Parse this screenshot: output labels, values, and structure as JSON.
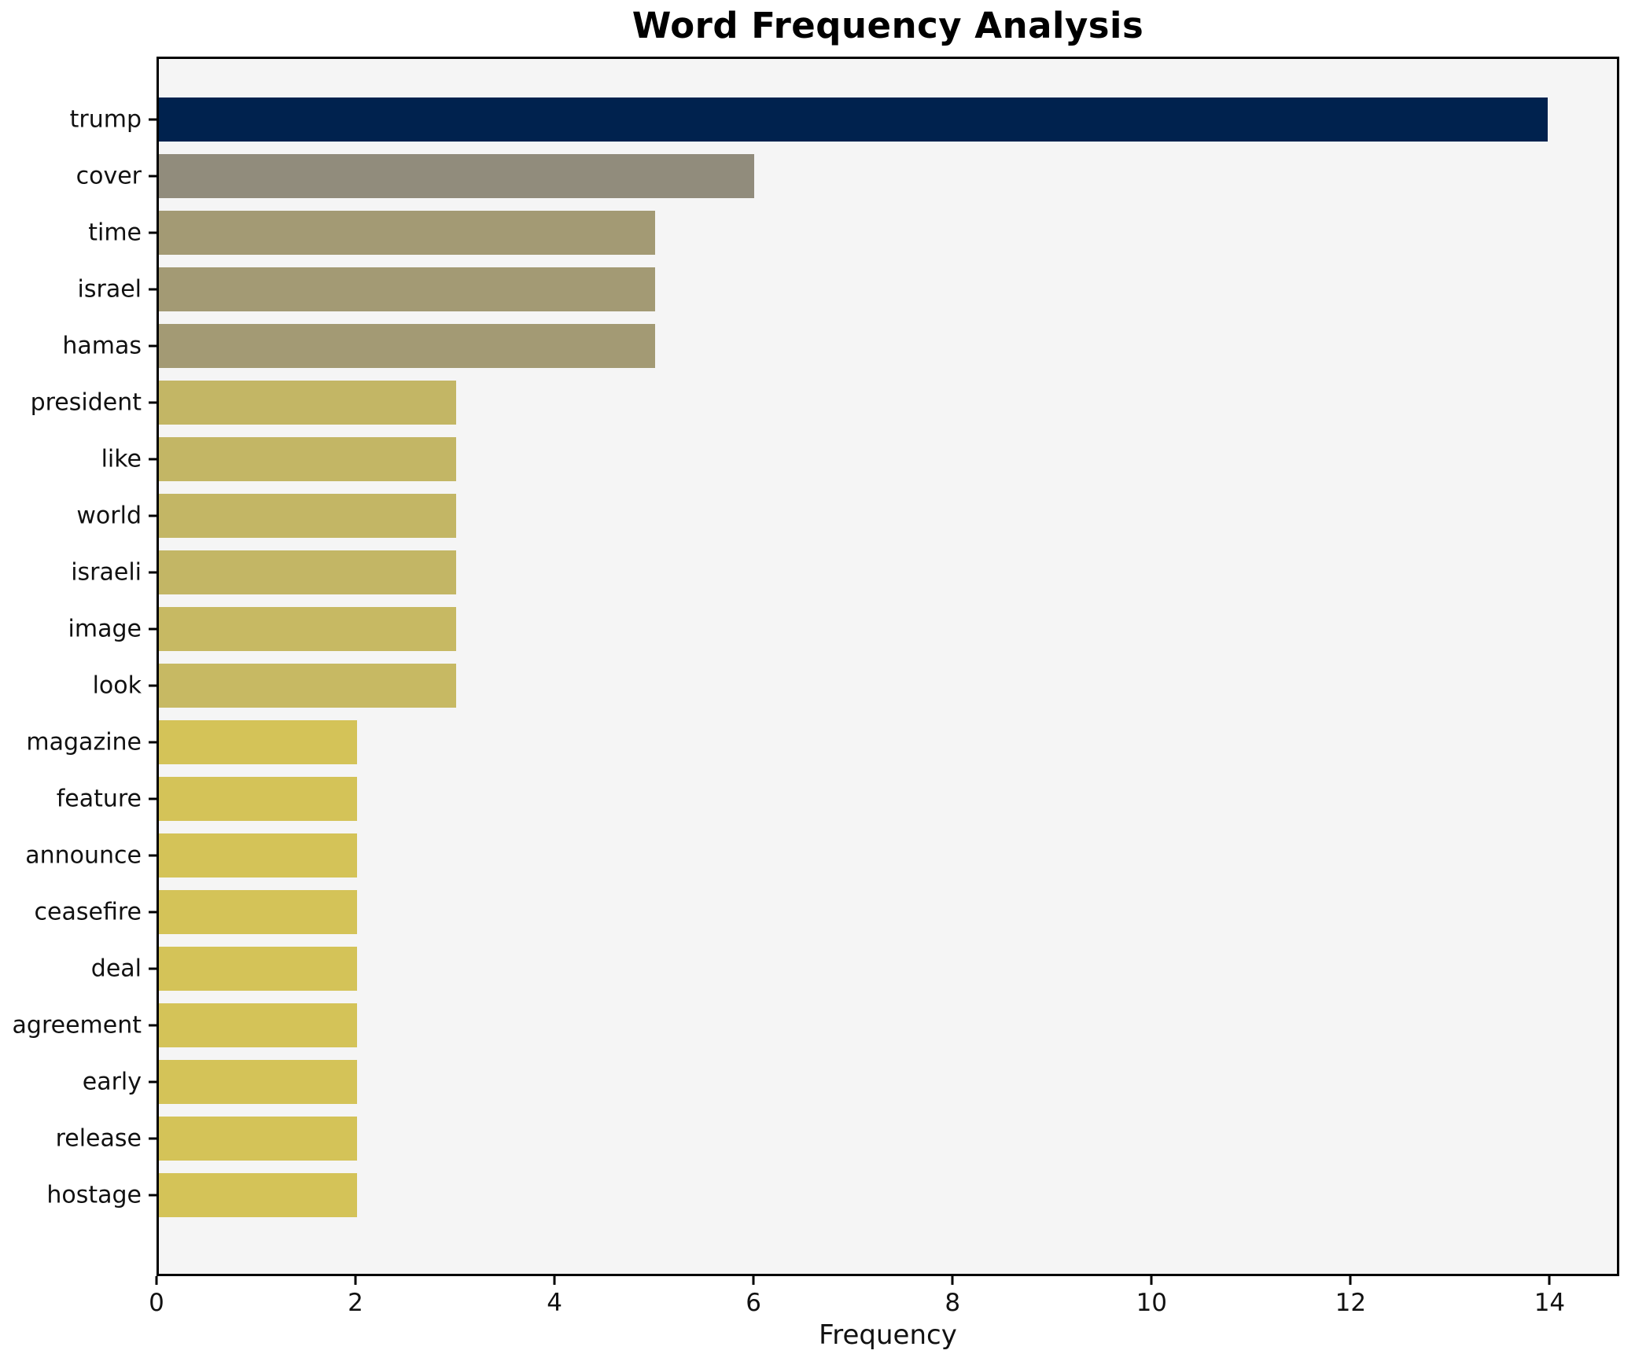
{
  "chart_data": {
    "type": "bar",
    "orientation": "horizontal",
    "title": "Word Frequency Analysis",
    "xlabel": "Frequency",
    "ylabel": "",
    "xlim": [
      0,
      14.7
    ],
    "x_ticks": [
      0,
      2,
      4,
      6,
      8,
      10,
      12,
      14
    ],
    "grid": false,
    "legend_position": "none",
    "plot_background": "#f5f5f5",
    "figure_background": "#ffffff",
    "spine_color": "#000000",
    "categories": [
      "trump",
      "cover",
      "time",
      "israel",
      "hamas",
      "president",
      "like",
      "world",
      "israeli",
      "image",
      "look",
      "magazine",
      "feature",
      "announce",
      "ceasefire",
      "deal",
      "agreement",
      "early",
      "release",
      "hostage"
    ],
    "values": [
      14,
      6,
      5,
      5,
      5,
      3,
      3,
      3,
      3,
      3,
      3,
      2,
      2,
      2,
      2,
      2,
      2,
      2,
      2,
      2
    ],
    "bar_colors": [
      "#00224e",
      "#918c7c",
      "#a39a74",
      "#a39a74",
      "#a39a74",
      "#c3b665",
      "#c3b665",
      "#c3b665",
      "#c3b665",
      "#c7b963",
      "#c7b963",
      "#d4c358",
      "#d4c358",
      "#d4c358",
      "#d4c358",
      "#d4c358",
      "#d4c358",
      "#d4c358",
      "#d4c358",
      "#d4c358"
    ]
  }
}
